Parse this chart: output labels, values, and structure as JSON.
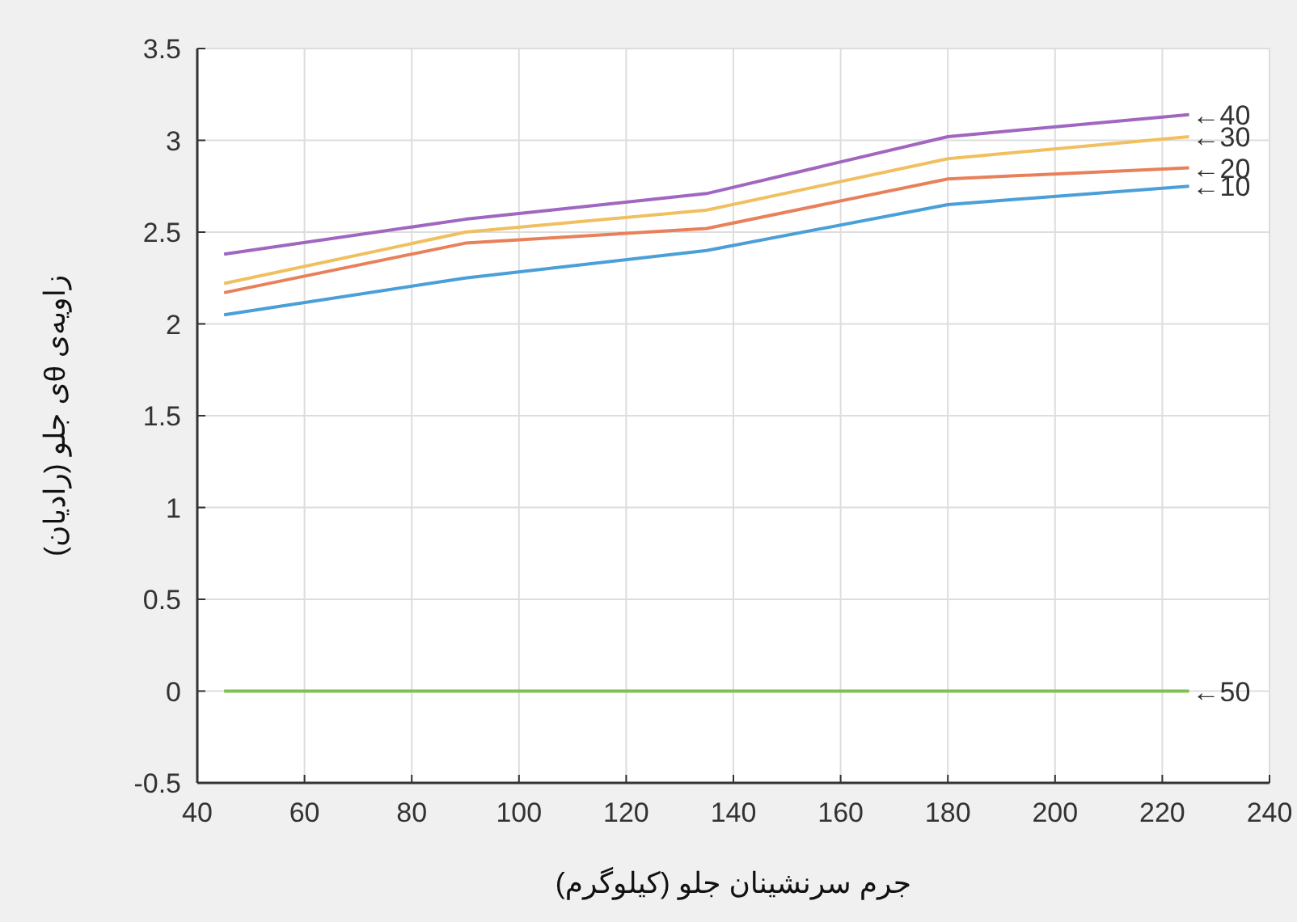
{
  "chart_data": {
    "type": "line",
    "xlabel": "جرم سرنشینان جلو (کیلوگرم)",
    "ylabel": "زاویه‌ی θی جلو (رادیان)",
    "x": [
      45,
      90,
      135,
      180,
      225
    ],
    "series": [
      {
        "name": "←10",
        "color": "#4a9fd8",
        "values": [
          2.05,
          2.25,
          2.4,
          2.65,
          2.75
        ]
      },
      {
        "name": "←20",
        "color": "#e8805a",
        "values": [
          2.17,
          2.44,
          2.52,
          2.79,
          2.85
        ]
      },
      {
        "name": "←30",
        "color": "#f0c060",
        "values": [
          2.22,
          2.5,
          2.62,
          2.9,
          3.02
        ]
      },
      {
        "name": "←40",
        "color": "#a066c0",
        "values": [
          2.38,
          2.57,
          2.71,
          3.02,
          3.14
        ]
      },
      {
        "name": "←50",
        "color": "#80c050",
        "values": [
          0,
          0,
          0,
          0,
          0
        ]
      }
    ],
    "xlim": [
      40,
      240
    ],
    "xticks": [
      40,
      60,
      80,
      100,
      120,
      140,
      160,
      180,
      200,
      220,
      240
    ],
    "ylim": [
      -0.5,
      3.5
    ],
    "yticks": [
      -0.5,
      0,
      0.5,
      1,
      1.5,
      2,
      2.5,
      3,
      3.5
    ],
    "grid": true,
    "marker": "none",
    "line_style": "solid"
  }
}
